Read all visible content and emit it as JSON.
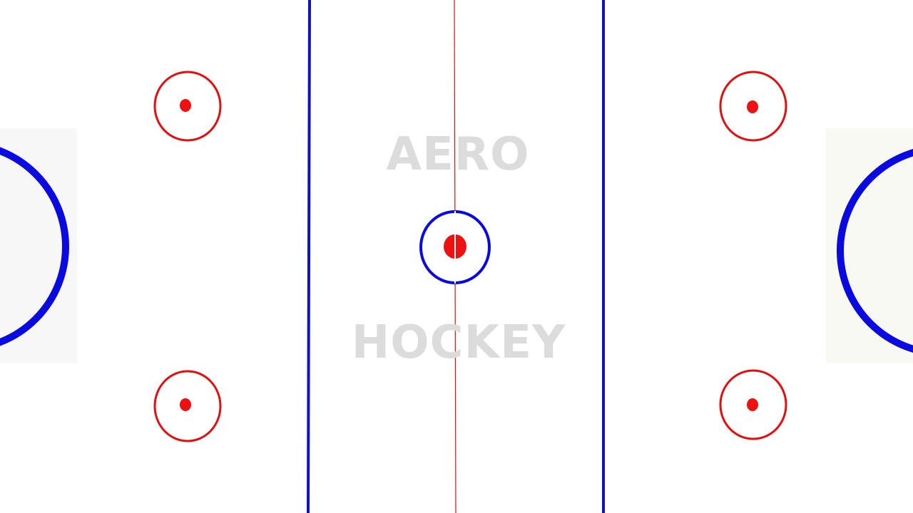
{
  "title": {
    "line1": "AERO",
    "line2": "HOCKEY"
  },
  "colors": {
    "background": "#ffffff",
    "blue_line": "#1010c8",
    "goal_crease": "#0a0ae0",
    "red_line": "#e01010",
    "watermark_text": "#dcdcdc"
  }
}
